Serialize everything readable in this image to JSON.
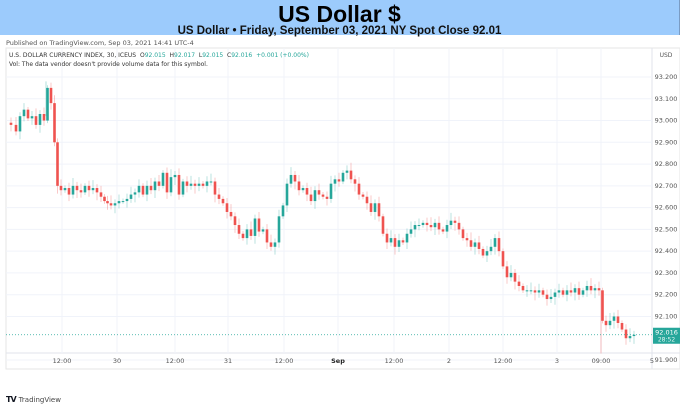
{
  "banner": {
    "title": "US Dollar $",
    "subtitle": "US Dollar • Friday, September 03, 2021 NY Spot Close 92.01"
  },
  "published": "Published on TradingView.com, Sep 03, 2021 14:41 UTC-4",
  "legend": {
    "symbol": "U.S. DOLLAR CURRENCY INDEX, 30, ICEUS",
    "o_label": "O",
    "o": "92.015",
    "h_label": "H",
    "h": "92.017",
    "l_label": "L",
    "l": "92.015",
    "c_label": "C",
    "c": "92.016",
    "change": "+0.001 (+0.00%)",
    "vol_note": "Vol: The data vendor doesn't provide volume data for this symbol."
  },
  "footer": {
    "logo_glyph": "TV",
    "brand": "TradingView"
  },
  "colors": {
    "up": "#26a69a",
    "down": "#ef5350",
    "grid": "#f0f3fa",
    "axis_text": "#555555",
    "price_tag_bg": "#26a69a",
    "banner_bg": "#9ccbfc"
  },
  "chart_data": {
    "type": "candlestick",
    "title": "US Dollar $",
    "subtitle": "US Dollar • Friday, September 03, 2021 NY Spot Close 92.01",
    "interval": "30",
    "currency_label": "USD",
    "y_ticks": [
      93.2,
      93.1,
      93.0,
      92.9,
      92.8,
      92.7,
      92.6,
      92.5,
      92.4,
      92.3,
      92.2,
      92.1,
      91.9
    ],
    "y_tick_labels": [
      "93.200",
      "93.100",
      "93.000",
      "92.900",
      "92.800",
      "92.700",
      "92.600",
      "92.500",
      "92.400",
      "92.300",
      "92.200",
      "92.100",
      "91.900"
    ],
    "ylim": [
      91.86,
      93.28
    ],
    "x_tick_labels": [
      "12:00",
      "30",
      "12:00",
      "31",
      "12:00",
      "Sep",
      "12:00",
      "2",
      "12:00",
      "3",
      "09:00",
      "5"
    ],
    "x_tick_bold": [
      false,
      false,
      false,
      false,
      false,
      true,
      false,
      false,
      false,
      false,
      false,
      false
    ],
    "last_price": "92.016",
    "countdown": "28:52",
    "grid": true,
    "path": [
      [
        0,
        92.99
      ],
      [
        6,
        92.98
      ],
      [
        10,
        92.95
      ],
      [
        14,
        93.02
      ],
      [
        18,
        93.05
      ],
      [
        22,
        93.01
      ],
      [
        26,
        93.02
      ],
      [
        30,
        92.98
      ],
      [
        34,
        93.03
      ],
      [
        38,
        93.0
      ],
      [
        41,
        93.15
      ],
      [
        45,
        93.08
      ],
      [
        48,
        92.9
      ],
      [
        51,
        92.7
      ],
      [
        55,
        92.68
      ],
      [
        59,
        92.69
      ],
      [
        63,
        92.66
      ],
      [
        67,
        92.7
      ],
      [
        71,
        92.68
      ],
      [
        75,
        92.67
      ],
      [
        79,
        92.7
      ],
      [
        83,
        92.68
      ],
      [
        87,
        92.69
      ],
      [
        91,
        92.67
      ],
      [
        95,
        92.65
      ],
      [
        98,
        92.63
      ],
      [
        101,
        92.62
      ],
      [
        105,
        92.61
      ],
      [
        109,
        92.62
      ],
      [
        113,
        92.63
      ],
      [
        117,
        92.63
      ],
      [
        121,
        92.64
      ],
      [
        125,
        92.66
      ],
      [
        129,
        92.67
      ],
      [
        133,
        92.7
      ],
      [
        137,
        92.66
      ],
      [
        141,
        92.7
      ],
      [
        145,
        92.68
      ],
      [
        149,
        92.72
      ],
      [
        153,
        92.7
      ],
      [
        157,
        92.76
      ],
      [
        161,
        92.67
      ],
      [
        165,
        92.74
      ],
      [
        169,
        92.75
      ],
      [
        173,
        92.66
      ],
      [
        177,
        92.72
      ],
      [
        181,
        92.7
      ],
      [
        185,
        92.71
      ],
      [
        189,
        92.7
      ],
      [
        193,
        92.71
      ],
      [
        197,
        92.7
      ],
      [
        201,
        92.72
      ],
      [
        205,
        92.72
      ],
      [
        209,
        92.66
      ],
      [
        213,
        92.64
      ],
      [
        217,
        92.62
      ],
      [
        221,
        92.58
      ],
      [
        225,
        92.56
      ],
      [
        229,
        92.52
      ],
      [
        233,
        92.48
      ],
      [
        237,
        92.46
      ],
      [
        241,
        92.5
      ],
      [
        245,
        92.47
      ],
      [
        249,
        92.55
      ],
      [
        253,
        92.49
      ],
      [
        257,
        92.5
      ],
      [
        261,
        92.44
      ],
      [
        265,
        92.42
      ],
      [
        269,
        92.44
      ],
      [
        273,
        92.56
      ],
      [
        277,
        92.61
      ],
      [
        281,
        92.71
      ],
      [
        285,
        92.75
      ],
      [
        289,
        92.72
      ],
      [
        293,
        92.68
      ],
      [
        297,
        92.69
      ],
      [
        301,
        92.66
      ],
      [
        305,
        92.63
      ],
      [
        309,
        92.68
      ],
      [
        313,
        92.66
      ],
      [
        317,
        92.65
      ],
      [
        321,
        92.64
      ],
      [
        325,
        92.71
      ],
      [
        329,
        92.73
      ],
      [
        333,
        92.72
      ],
      [
        337,
        92.76
      ],
      [
        341,
        92.77
      ],
      [
        345,
        92.73
      ],
      [
        349,
        92.71
      ],
      [
        353,
        92.66
      ],
      [
        357,
        92.65
      ],
      [
        361,
        92.62
      ],
      [
        365,
        92.58
      ],
      [
        369,
        92.62
      ],
      [
        373,
        92.56
      ],
      [
        377,
        92.48
      ],
      [
        381,
        92.44
      ],
      [
        385,
        92.46
      ],
      [
        389,
        92.42
      ],
      [
        393,
        92.45
      ],
      [
        397,
        92.44
      ],
      [
        401,
        92.48
      ],
      [
        405,
        92.5
      ],
      [
        409,
        92.52
      ],
      [
        413,
        92.52
      ],
      [
        417,
        92.53
      ],
      [
        421,
        92.52
      ],
      [
        425,
        92.51
      ],
      [
        429,
        92.53
      ],
      [
        433,
        92.5
      ],
      [
        437,
        92.49
      ],
      [
        441,
        92.52
      ],
      [
        445,
        92.54
      ],
      [
        449,
        92.53
      ],
      [
        453,
        92.5
      ],
      [
        457,
        92.46
      ],
      [
        461,
        92.45
      ],
      [
        465,
        92.42
      ],
      [
        469,
        92.44
      ],
      [
        473,
        92.41
      ],
      [
        477,
        92.38
      ],
      [
        481,
        92.4
      ],
      [
        485,
        92.42
      ],
      [
        489,
        92.46
      ],
      [
        493,
        92.4
      ],
      [
        497,
        92.33
      ],
      [
        501,
        92.28
      ],
      [
        505,
        92.3
      ],
      [
        509,
        92.26
      ],
      [
        513,
        92.24
      ],
      [
        517,
        92.22
      ],
      [
        521,
        92.22
      ],
      [
        525,
        92.22
      ],
      [
        529,
        92.21
      ],
      [
        533,
        92.22
      ],
      [
        537,
        92.2
      ],
      [
        541,
        92.18
      ],
      [
        545,
        92.19
      ],
      [
        549,
        92.21
      ],
      [
        553,
        92.22
      ],
      [
        557,
        92.2
      ],
      [
        561,
        92.22
      ],
      [
        565,
        92.21
      ],
      [
        569,
        92.23
      ],
      [
        573,
        92.2
      ],
      [
        577,
        92.22
      ],
      [
        581,
        92.24
      ],
      [
        585,
        92.22
      ],
      [
        589,
        92.23
      ],
      [
        593,
        92.22
      ],
      [
        596,
        92.08
      ],
      [
        600,
        92.06
      ],
      [
        604,
        92.08
      ],
      [
        608,
        92.1
      ],
      [
        612,
        92.07
      ],
      [
        616,
        92.04
      ],
      [
        620,
        92.0
      ],
      [
        624,
        92.01
      ],
      [
        628,
        92.016
      ]
    ]
  }
}
